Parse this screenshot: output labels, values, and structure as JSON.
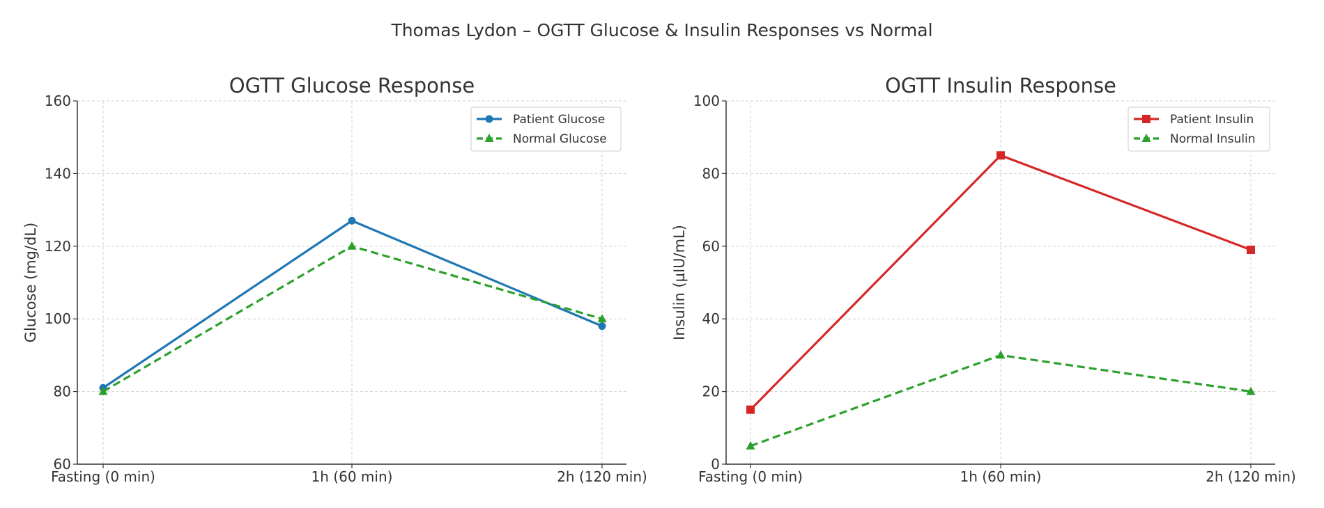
{
  "title": "Thomas Lydon – OGTT Glucose & Insulin Responses vs Normal",
  "chart_data": [
    {
      "type": "line",
      "title": "OGTT Glucose Response",
      "xlabel": "",
      "ylabel": "Glucose (mg/dL)",
      "categories": [
        "Fasting (0 min)",
        "1h (60 min)",
        "2h (120 min)"
      ],
      "ylim": [
        60,
        160
      ],
      "yticks": [
        60,
        80,
        100,
        120,
        140,
        160
      ],
      "grid": true,
      "legend": "top-right",
      "series": [
        {
          "name": "Patient Glucose",
          "values": [
            81,
            127,
            98
          ],
          "color": "#1f77b4",
          "marker": "circle",
          "dashed": false
        },
        {
          "name": "Normal Glucose",
          "values": [
            80,
            120,
            100
          ],
          "color": "#2ca02c",
          "marker": "triangle",
          "dashed": true
        }
      ]
    },
    {
      "type": "line",
      "title": "OGTT Insulin Response",
      "xlabel": "",
      "ylabel": "Insulin (µIU/mL)",
      "categories": [
        "Fasting (0 min)",
        "1h (60 min)",
        "2h (120 min)"
      ],
      "ylim": [
        0,
        100
      ],
      "yticks": [
        0,
        20,
        40,
        60,
        80,
        100
      ],
      "grid": true,
      "legend": "top-right",
      "series": [
        {
          "name": "Patient Insulin",
          "values": [
            15,
            85,
            59
          ],
          "color": "#d62728",
          "marker": "square",
          "dashed": false
        },
        {
          "name": "Normal Insulin",
          "values": [
            5,
            30,
            20
          ],
          "color": "#2ca02c",
          "marker": "triangle",
          "dashed": true
        }
      ]
    }
  ]
}
